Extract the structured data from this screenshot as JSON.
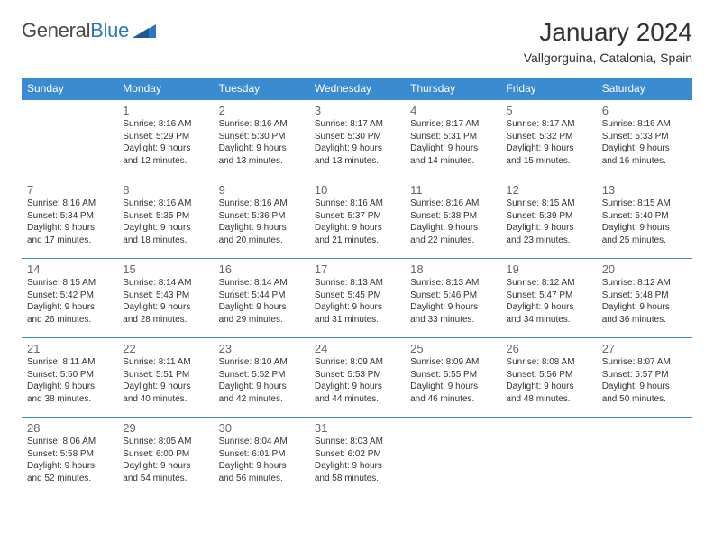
{
  "logo": {
    "general": "General",
    "blue": "Blue"
  },
  "title": "January 2024",
  "location": "Vallgorguina, Catalonia, Spain",
  "weekdays": [
    "Sunday",
    "Monday",
    "Tuesday",
    "Wednesday",
    "Thursday",
    "Friday",
    "Saturday"
  ],
  "colors": {
    "header_bg": "#3b8bd0",
    "header_fg": "#ffffff",
    "border": "#3b8bd0",
    "text": "#333333",
    "daynum": "#666666",
    "logo_blue": "#2b77c0"
  },
  "weeks": [
    [
      null,
      {
        "n": "1",
        "sr": "Sunrise: 8:16 AM",
        "ss": "Sunset: 5:29 PM",
        "d1": "Daylight: 9 hours",
        "d2": "and 12 minutes."
      },
      {
        "n": "2",
        "sr": "Sunrise: 8:16 AM",
        "ss": "Sunset: 5:30 PM",
        "d1": "Daylight: 9 hours",
        "d2": "and 13 minutes."
      },
      {
        "n": "3",
        "sr": "Sunrise: 8:17 AM",
        "ss": "Sunset: 5:30 PM",
        "d1": "Daylight: 9 hours",
        "d2": "and 13 minutes."
      },
      {
        "n": "4",
        "sr": "Sunrise: 8:17 AM",
        "ss": "Sunset: 5:31 PM",
        "d1": "Daylight: 9 hours",
        "d2": "and 14 minutes."
      },
      {
        "n": "5",
        "sr": "Sunrise: 8:17 AM",
        "ss": "Sunset: 5:32 PM",
        "d1": "Daylight: 9 hours",
        "d2": "and 15 minutes."
      },
      {
        "n": "6",
        "sr": "Sunrise: 8:16 AM",
        "ss": "Sunset: 5:33 PM",
        "d1": "Daylight: 9 hours",
        "d2": "and 16 minutes."
      }
    ],
    [
      {
        "n": "7",
        "sr": "Sunrise: 8:16 AM",
        "ss": "Sunset: 5:34 PM",
        "d1": "Daylight: 9 hours",
        "d2": "and 17 minutes."
      },
      {
        "n": "8",
        "sr": "Sunrise: 8:16 AM",
        "ss": "Sunset: 5:35 PM",
        "d1": "Daylight: 9 hours",
        "d2": "and 18 minutes."
      },
      {
        "n": "9",
        "sr": "Sunrise: 8:16 AM",
        "ss": "Sunset: 5:36 PM",
        "d1": "Daylight: 9 hours",
        "d2": "and 20 minutes."
      },
      {
        "n": "10",
        "sr": "Sunrise: 8:16 AM",
        "ss": "Sunset: 5:37 PM",
        "d1": "Daylight: 9 hours",
        "d2": "and 21 minutes."
      },
      {
        "n": "11",
        "sr": "Sunrise: 8:16 AM",
        "ss": "Sunset: 5:38 PM",
        "d1": "Daylight: 9 hours",
        "d2": "and 22 minutes."
      },
      {
        "n": "12",
        "sr": "Sunrise: 8:15 AM",
        "ss": "Sunset: 5:39 PM",
        "d1": "Daylight: 9 hours",
        "d2": "and 23 minutes."
      },
      {
        "n": "13",
        "sr": "Sunrise: 8:15 AM",
        "ss": "Sunset: 5:40 PM",
        "d1": "Daylight: 9 hours",
        "d2": "and 25 minutes."
      }
    ],
    [
      {
        "n": "14",
        "sr": "Sunrise: 8:15 AM",
        "ss": "Sunset: 5:42 PM",
        "d1": "Daylight: 9 hours",
        "d2": "and 26 minutes."
      },
      {
        "n": "15",
        "sr": "Sunrise: 8:14 AM",
        "ss": "Sunset: 5:43 PM",
        "d1": "Daylight: 9 hours",
        "d2": "and 28 minutes."
      },
      {
        "n": "16",
        "sr": "Sunrise: 8:14 AM",
        "ss": "Sunset: 5:44 PM",
        "d1": "Daylight: 9 hours",
        "d2": "and 29 minutes."
      },
      {
        "n": "17",
        "sr": "Sunrise: 8:13 AM",
        "ss": "Sunset: 5:45 PM",
        "d1": "Daylight: 9 hours",
        "d2": "and 31 minutes."
      },
      {
        "n": "18",
        "sr": "Sunrise: 8:13 AM",
        "ss": "Sunset: 5:46 PM",
        "d1": "Daylight: 9 hours",
        "d2": "and 33 minutes."
      },
      {
        "n": "19",
        "sr": "Sunrise: 8:12 AM",
        "ss": "Sunset: 5:47 PM",
        "d1": "Daylight: 9 hours",
        "d2": "and 34 minutes."
      },
      {
        "n": "20",
        "sr": "Sunrise: 8:12 AM",
        "ss": "Sunset: 5:48 PM",
        "d1": "Daylight: 9 hours",
        "d2": "and 36 minutes."
      }
    ],
    [
      {
        "n": "21",
        "sr": "Sunrise: 8:11 AM",
        "ss": "Sunset: 5:50 PM",
        "d1": "Daylight: 9 hours",
        "d2": "and 38 minutes."
      },
      {
        "n": "22",
        "sr": "Sunrise: 8:11 AM",
        "ss": "Sunset: 5:51 PM",
        "d1": "Daylight: 9 hours",
        "d2": "and 40 minutes."
      },
      {
        "n": "23",
        "sr": "Sunrise: 8:10 AM",
        "ss": "Sunset: 5:52 PM",
        "d1": "Daylight: 9 hours",
        "d2": "and 42 minutes."
      },
      {
        "n": "24",
        "sr": "Sunrise: 8:09 AM",
        "ss": "Sunset: 5:53 PM",
        "d1": "Daylight: 9 hours",
        "d2": "and 44 minutes."
      },
      {
        "n": "25",
        "sr": "Sunrise: 8:09 AM",
        "ss": "Sunset: 5:55 PM",
        "d1": "Daylight: 9 hours",
        "d2": "and 46 minutes."
      },
      {
        "n": "26",
        "sr": "Sunrise: 8:08 AM",
        "ss": "Sunset: 5:56 PM",
        "d1": "Daylight: 9 hours",
        "d2": "and 48 minutes."
      },
      {
        "n": "27",
        "sr": "Sunrise: 8:07 AM",
        "ss": "Sunset: 5:57 PM",
        "d1": "Daylight: 9 hours",
        "d2": "and 50 minutes."
      }
    ],
    [
      {
        "n": "28",
        "sr": "Sunrise: 8:06 AM",
        "ss": "Sunset: 5:58 PM",
        "d1": "Daylight: 9 hours",
        "d2": "and 52 minutes."
      },
      {
        "n": "29",
        "sr": "Sunrise: 8:05 AM",
        "ss": "Sunset: 6:00 PM",
        "d1": "Daylight: 9 hours",
        "d2": "and 54 minutes."
      },
      {
        "n": "30",
        "sr": "Sunrise: 8:04 AM",
        "ss": "Sunset: 6:01 PM",
        "d1": "Daylight: 9 hours",
        "d2": "and 56 minutes."
      },
      {
        "n": "31",
        "sr": "Sunrise: 8:03 AM",
        "ss": "Sunset: 6:02 PM",
        "d1": "Daylight: 9 hours",
        "d2": "and 58 minutes."
      },
      null,
      null,
      null
    ]
  ]
}
